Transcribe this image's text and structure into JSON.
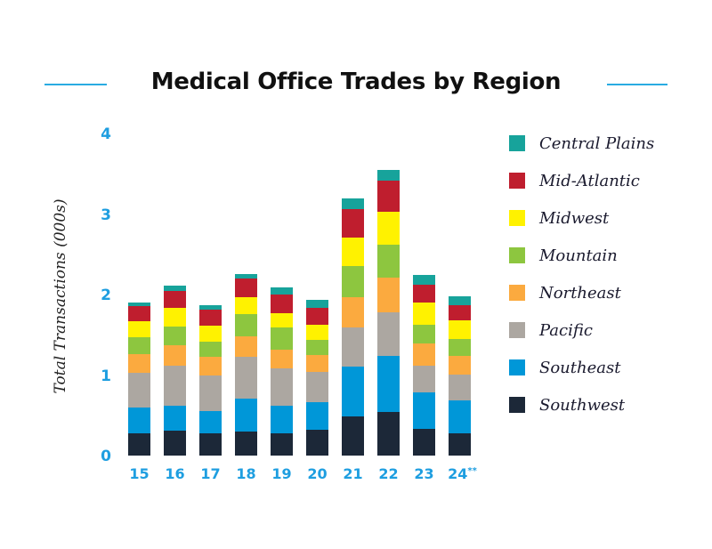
{
  "header": {
    "title": "Medical Office Trades by Region",
    "accent_color": "#29abe2"
  },
  "axis": {
    "ylabel": "Total Transactions (000s)",
    "yticks": [
      "0",
      "1",
      "2",
      "3",
      "4"
    ],
    "xticks": [
      "15",
      "16",
      "17",
      "18",
      "19",
      "20",
      "21",
      "22",
      "23",
      "24"
    ],
    "last_xtick_suffix": "**"
  },
  "legend": {
    "items": [
      {
        "label": "Central Plains",
        "color": "#17a39b"
      },
      {
        "label": "Mid-Atlantic",
        "color": "#bf1e2e"
      },
      {
        "label": "Midwest",
        "color": "#fff200"
      },
      {
        "label": "Mountain",
        "color": "#8dc63f"
      },
      {
        "label": "Northeast",
        "color": "#fbaa3f"
      },
      {
        "label": "Pacific",
        "color": "#aca7a1"
      },
      {
        "label": "Southeast",
        "color": "#0097d8"
      },
      {
        "label": "Southwest",
        "color": "#1c2838"
      }
    ]
  },
  "chart_data": {
    "type": "bar",
    "stacked": true,
    "title": "Medical Office Trades by Region",
    "xlabel": "",
    "ylabel": "Total Transactions (000s)",
    "ylim": [
      0,
      4
    ],
    "yticks": [
      0,
      1,
      2,
      3,
      4
    ],
    "grid": false,
    "legend_position": "right",
    "categories": [
      "15",
      "16",
      "17",
      "18",
      "19",
      "20",
      "21",
      "22",
      "23",
      "24**"
    ],
    "series": [
      {
        "name": "Southwest",
        "color": "#1c2838",
        "values": [
          0.28,
          0.31,
          0.28,
          0.3,
          0.28,
          0.32,
          0.49,
          0.54,
          0.33,
          0.28
        ]
      },
      {
        "name": "Southeast",
        "color": "#0097d8",
        "values": [
          0.32,
          0.31,
          0.27,
          0.41,
          0.34,
          0.34,
          0.62,
          0.7,
          0.46,
          0.4
        ]
      },
      {
        "name": "Pacific",
        "color": "#aca7a1",
        "values": [
          0.43,
          0.5,
          0.45,
          0.52,
          0.46,
          0.38,
          0.48,
          0.54,
          0.33,
          0.33
        ]
      },
      {
        "name": "Northeast",
        "color": "#fbaa3f",
        "values": [
          0.23,
          0.25,
          0.23,
          0.25,
          0.23,
          0.21,
          0.38,
          0.43,
          0.27,
          0.23
        ]
      },
      {
        "name": "Mountain",
        "color": "#8dc63f",
        "values": [
          0.21,
          0.23,
          0.19,
          0.28,
          0.28,
          0.19,
          0.38,
          0.41,
          0.24,
          0.21
        ]
      },
      {
        "name": "Midwest",
        "color": "#fff200",
        "values": [
          0.2,
          0.23,
          0.19,
          0.21,
          0.18,
          0.19,
          0.36,
          0.41,
          0.27,
          0.23
        ]
      },
      {
        "name": "Mid-Atlantic",
        "color": "#bf1e2e",
        "values": [
          0.19,
          0.21,
          0.2,
          0.23,
          0.23,
          0.21,
          0.35,
          0.38,
          0.22,
          0.19
        ]
      },
      {
        "name": "Central Plains",
        "color": "#17a39b",
        "values": [
          0.04,
          0.07,
          0.06,
          0.06,
          0.09,
          0.09,
          0.13,
          0.14,
          0.12,
          0.11
        ]
      }
    ]
  }
}
